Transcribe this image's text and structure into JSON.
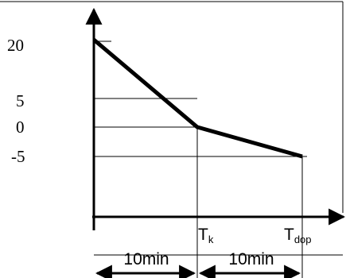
{
  "y_labels": [
    "20",
    "5",
    "0",
    "-5"
  ],
  "x_labels": [
    {
      "main": "T",
      "sub": "k"
    },
    {
      "main": "T",
      "sub": "dop"
    }
  ],
  "durations": [
    "10min",
    "10min"
  ]
}
